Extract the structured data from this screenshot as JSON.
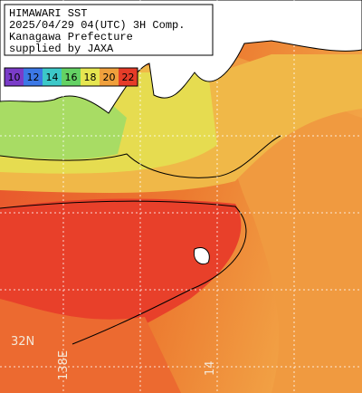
{
  "header": {
    "lines": [
      "HIMAWARI SST",
      "2025/04/29 04(UTC) 3H Comp.",
      "Kanagawa Prefecture",
      "supplied by JAXA"
    ]
  },
  "colorbar": {
    "ticks": [
      10,
      12,
      14,
      16,
      18,
      20,
      22
    ],
    "colors": [
      "#7a3cc8",
      "#3c78e6",
      "#3cc8c8",
      "#64d264",
      "#e6e650",
      "#f0a03c",
      "#e63c28"
    ]
  },
  "grid_labels": {
    "latitude": [
      "32N"
    ],
    "longitude": [
      "138E",
      "14"
    ]
  }
}
